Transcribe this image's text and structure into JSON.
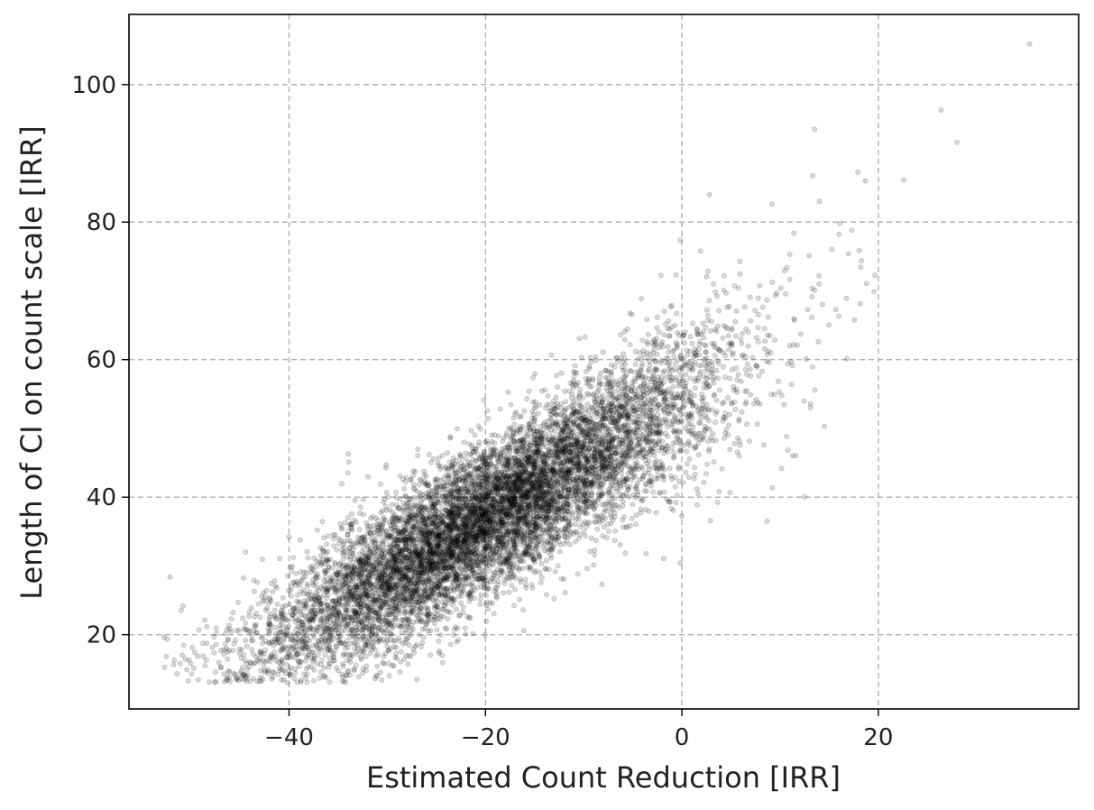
{
  "chart_data": {
    "type": "scatter",
    "title": "",
    "xlabel": "Estimated Count Reduction [IRR]",
    "ylabel": "Length of CI on count scale [IRR]",
    "xlim": [
      -56.3,
      40.4
    ],
    "ylim": [
      9.2,
      110.2
    ],
    "xticks": [
      -40,
      -20,
      0,
      20
    ],
    "xtick_labels": [
      "−40",
      "−20",
      "0",
      "20"
    ],
    "yticks": [
      20,
      40,
      60,
      80,
      100
    ],
    "ytick_labels": [
      "20",
      "40",
      "60",
      "80",
      "100"
    ],
    "grid": true,
    "grid_style": "dashed",
    "point_color": "#000000",
    "point_alpha": 0.15,
    "n_points": 9000,
    "trend": {
      "description": "positive linear relationship",
      "slope": 0.85,
      "intercept_at_x0": 54,
      "y_sd": 5.5,
      "x_center": -20,
      "x_sd": 12
    },
    "sample_points": [
      {
        "x": 35.4,
        "y": 105.9
      },
      {
        "x": 26.4,
        "y": 96.3
      },
      {
        "x": 28.0,
        "y": 91.6
      },
      {
        "x": 13.5,
        "y": 93.5
      },
      {
        "x": 22.6,
        "y": 86.1
      },
      {
        "x": 2.8,
        "y": 84.0
      },
      {
        "x": -52.1,
        "y": 28.4
      },
      {
        "x": -50.4,
        "y": 14.9
      },
      {
        "x": -44.4,
        "y": 14.0
      },
      {
        "x": -16.1,
        "y": 20.6
      }
    ]
  }
}
